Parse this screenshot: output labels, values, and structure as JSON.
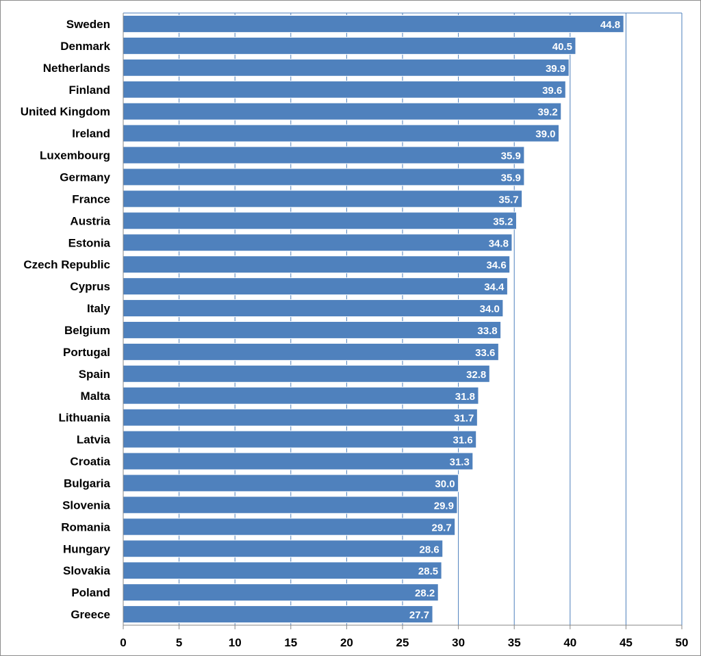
{
  "chart_data": {
    "type": "bar",
    "orientation": "horizontal",
    "categories": [
      "Sweden",
      "Denmark",
      "Netherlands",
      "Finland",
      "United Kingdom",
      "Ireland",
      "Luxembourg",
      "Germany",
      "France",
      "Austria",
      "Estonia",
      "Czech Republic",
      "Cyprus",
      "Italy",
      "Belgium",
      "Portugal",
      "Spain",
      "Malta",
      "Lithuania",
      "Latvia",
      "Croatia",
      "Bulgaria",
      "Slovenia",
      "Romania",
      "Hungary",
      "Slovakia",
      "Poland",
      "Greece"
    ],
    "values": [
      44.8,
      40.5,
      39.9,
      39.6,
      39.2,
      39.0,
      35.9,
      35.9,
      35.7,
      35.2,
      34.8,
      34.6,
      34.4,
      34.0,
      33.8,
      33.6,
      32.8,
      31.8,
      31.7,
      31.6,
      31.3,
      30.0,
      29.9,
      29.7,
      28.6,
      28.5,
      28.2,
      27.7
    ],
    "value_labels": [
      "44.8",
      "40.5",
      "39.9",
      "39.6",
      "39.2",
      "39.0",
      "35.9",
      "35.9",
      "35.7",
      "35.2",
      "34.8",
      "34.6",
      "34.4",
      "34.0",
      "33.8",
      "33.6",
      "32.8",
      "31.8",
      "31.7",
      "31.6",
      "31.3",
      "30.0",
      "29.9",
      "29.7",
      "28.6",
      "28.5",
      "28.2",
      "27.7"
    ],
    "xlim": [
      0,
      50
    ],
    "xticks": [
      "0",
      "5",
      "10",
      "15",
      "20",
      "25",
      "30",
      "35",
      "40",
      "45",
      "50"
    ],
    "title": "",
    "xlabel": "",
    "ylabel": "",
    "grid": "vertical",
    "legend": "none",
    "colors": {
      "bar": "#4f81bd",
      "bar_edge": "#ffffff",
      "grid": "#4a7ebb",
      "axis": "#868686",
      "label": "#000000",
      "data_label": "#ffffff"
    }
  }
}
